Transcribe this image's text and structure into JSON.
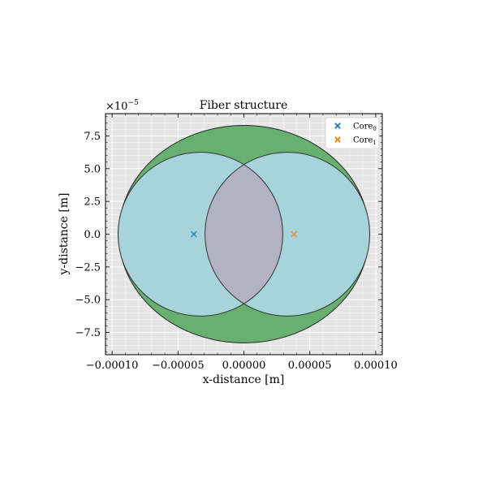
{
  "chart_data": {
    "type": "scatter",
    "title": "Fiber structure",
    "xlabel": "x-distance [m]",
    "ylabel": "y-distance [m]",
    "xlim": [
      -0.000105,
      0.000105
    ],
    "ylim": [
      -9.2e-05,
      9.2e-05
    ],
    "y_offset_label": "×10",
    "y_offset_exponent": "−5",
    "x_ticks": [
      -0.0001,
      -5e-05,
      0,
      5e-05,
      0.0001
    ],
    "x_tick_labels": [
      "−0.00010",
      "−0.00005",
      "0.00000",
      "0.00005",
      "0.00010"
    ],
    "y_ticks": [
      7.5e-05,
      5e-05,
      2.5e-05,
      0,
      -2.5e-05,
      -5e-05,
      -7.5e-05
    ],
    "y_tick_labels": [
      "7.5",
      "5.0",
      "2.5",
      "0.0",
      "−2.5",
      "−5.0",
      "−7.5"
    ],
    "grid": true,
    "legend_position": "top-right",
    "background_color": "#e5e5e5",
    "clad": {
      "cx": 0,
      "cy": 0,
      "rx": 9.5e-05,
      "ry": 8.3e-05,
      "color": "#5aaa63"
    },
    "cores_regions": [
      {
        "cx": -3.3e-05,
        "cy": 0,
        "r": 6.25e-05,
        "color": "#add8e6"
      },
      {
        "cx": 3.3e-05,
        "cy": 0,
        "r": 6.25e-05,
        "color": "#add8e6"
      }
    ],
    "overlap_color": "#b2b2c3",
    "series": [
      {
        "name": "Core",
        "subscript": "0",
        "marker": "x",
        "color": "#1f77b4",
        "x": [
          -3.8e-05
        ],
        "y": [
          0
        ]
      },
      {
        "name": "Core",
        "subscript": "1",
        "marker": "x",
        "color": "#ff7f0e",
        "x": [
          3.8e-05
        ],
        "y": [
          0
        ]
      }
    ]
  }
}
